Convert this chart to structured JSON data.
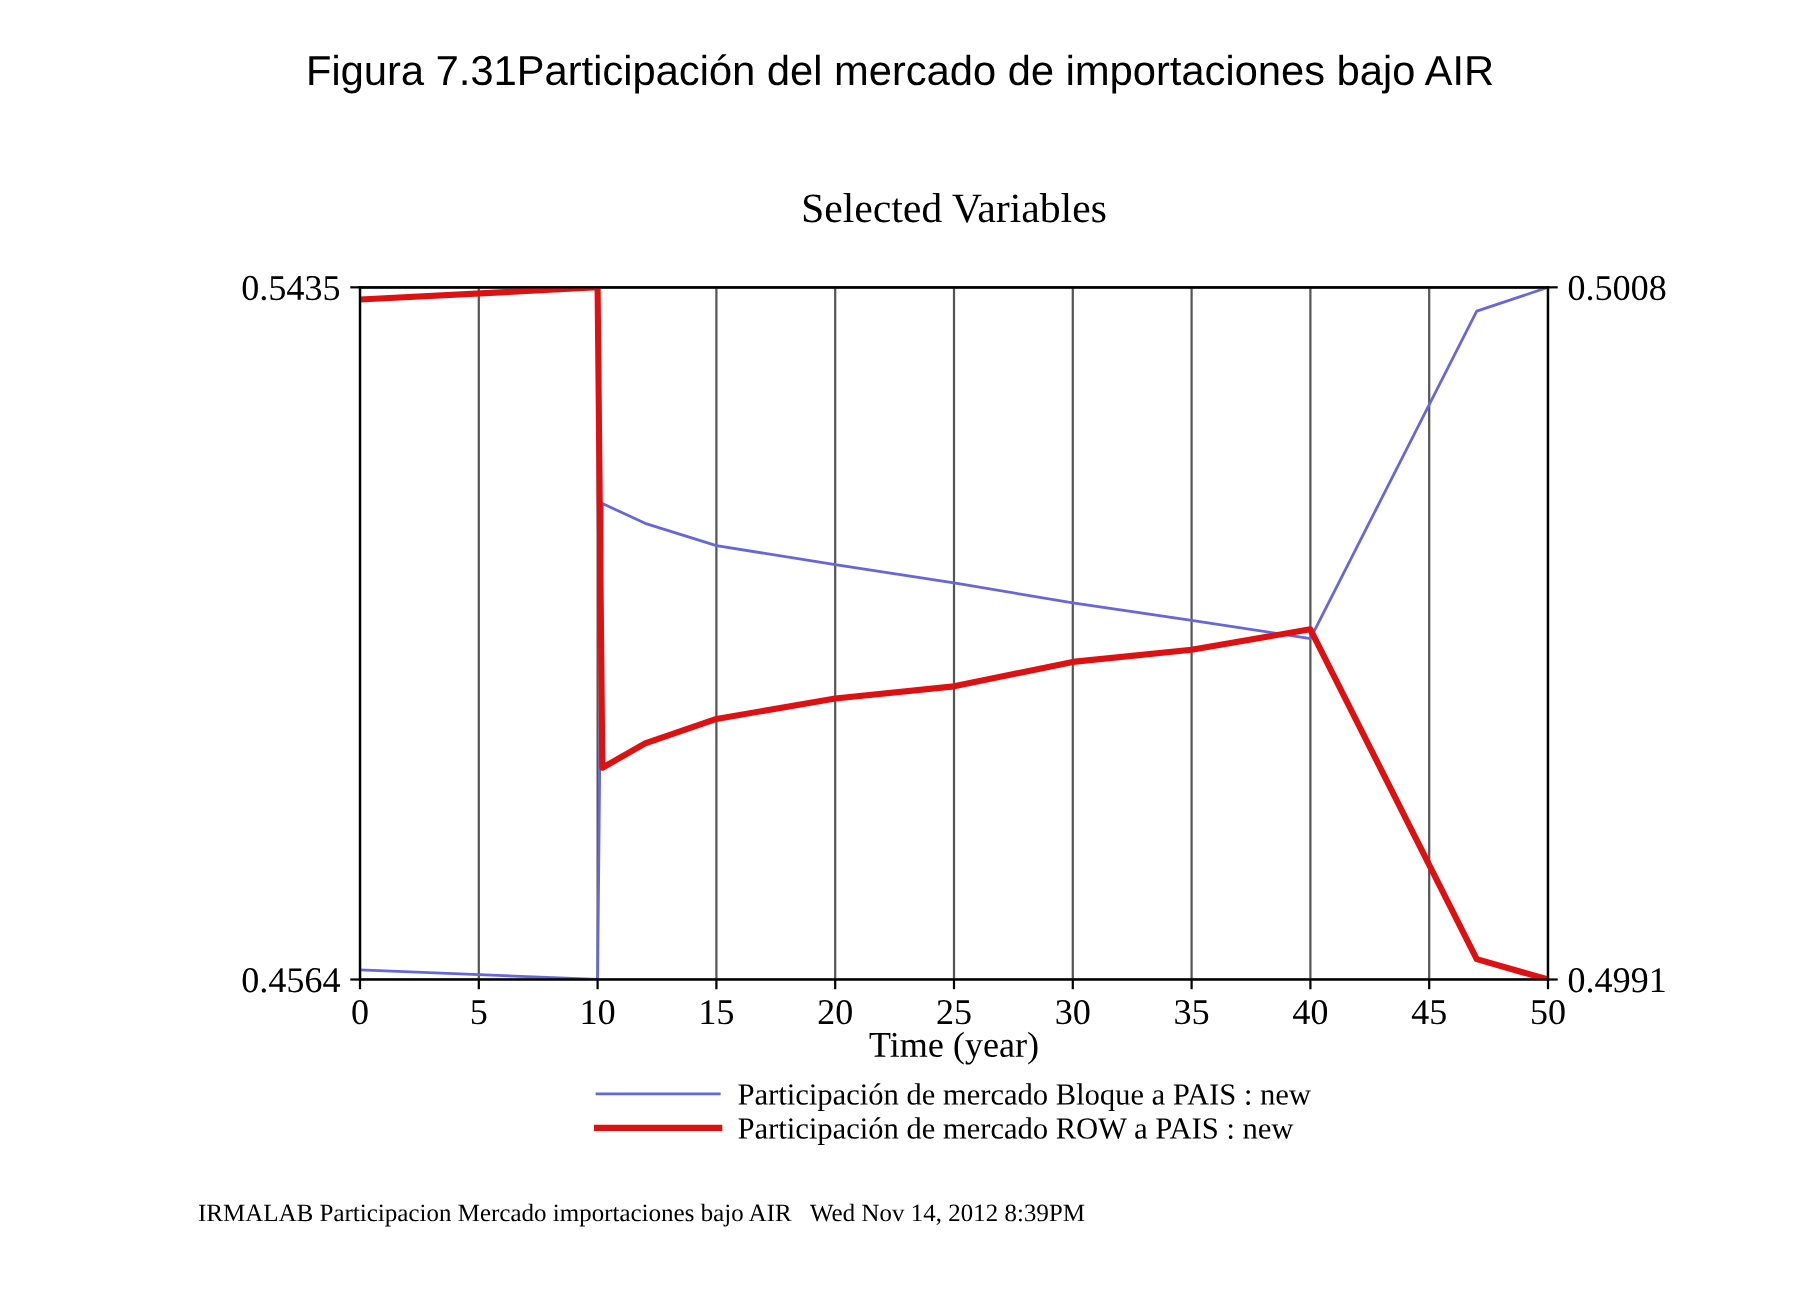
{
  "chart_data": {
    "type": "line",
    "title": "Figura 7.31Participación del mercado de importaciones bajo AIR",
    "subtitle": "Selected Variables",
    "xlabel": "Time (year)",
    "xlim": [
      0,
      50
    ],
    "xticks": [
      0,
      5,
      10,
      15,
      20,
      25,
      30,
      35,
      40,
      45,
      50
    ],
    "ylim": [
      0.4564,
      0.5435
    ],
    "yticks": [
      0.4564,
      0.5435
    ],
    "y2lim": [
      0.4991,
      0.5008
    ],
    "y2ticks": [
      0.4991,
      0.5008
    ],
    "grid": true,
    "legend": "bottom",
    "series": [
      {
        "name": "Participación de mercado Bloque a PAIS : new",
        "color": "#6666dd",
        "x": [
          0,
          10,
          10.2,
          12,
          15,
          20,
          25,
          30,
          35,
          40,
          47,
          50
        ],
        "values": [
          0.4576,
          0.4564,
          0.5163,
          0.5138,
          0.511,
          0.5086,
          0.5063,
          0.5038,
          0.5016,
          0.4993,
          0.5405,
          0.5435
        ]
      },
      {
        "name": "Participación de mercado ROW a PAIS : new",
        "color": "#dd1111",
        "axis": "y2",
        "x": [
          0,
          10,
          10.2,
          12,
          15,
          20,
          25,
          30,
          35,
          40,
          47,
          50
        ],
        "values": [
          0.50077,
          0.5008,
          0.49962,
          0.49968,
          0.49974,
          0.49979,
          0.49982,
          0.49988,
          0.49991,
          0.49996,
          0.49915,
          0.4991
        ]
      }
    ],
    "annotations": [
      "IRMALAB Participacion Mercado importaciones bajo AIR   Wed Nov 14, 2012 8:39PM"
    ]
  }
}
